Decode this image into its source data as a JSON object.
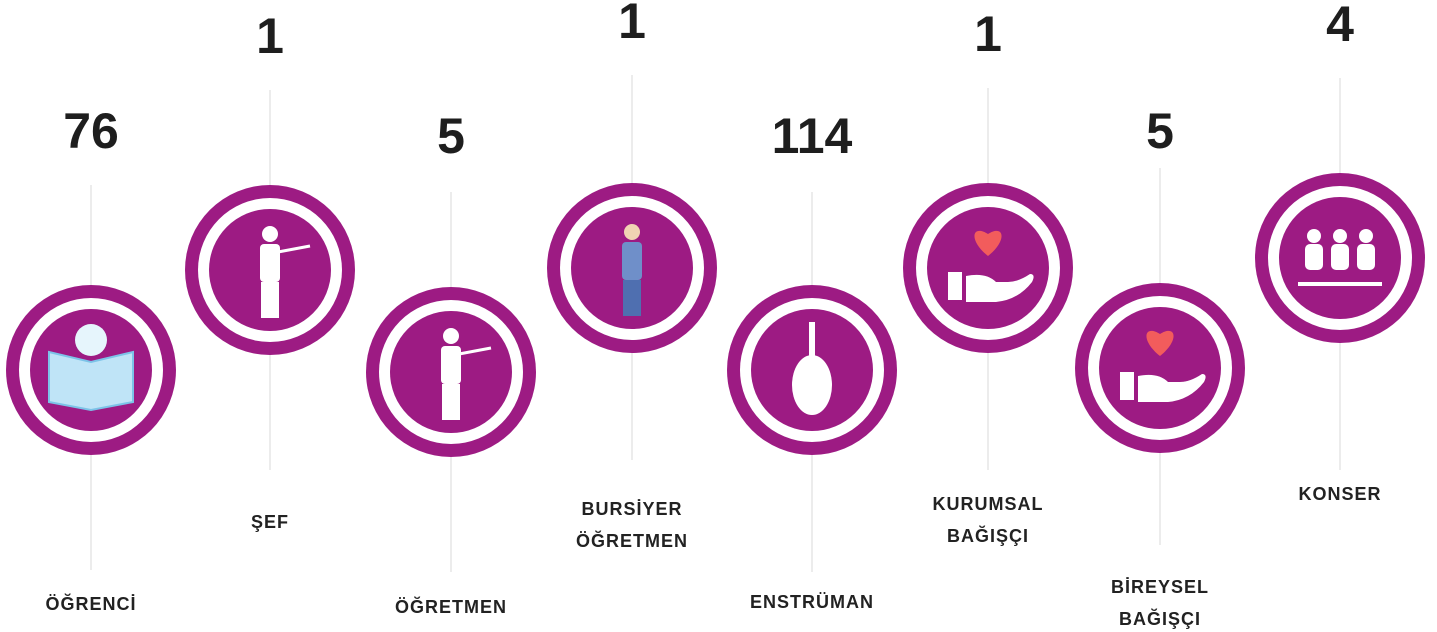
{
  "items": [
    {
      "number": "76",
      "label": [
        "ÖĞRENCİ"
      ]
    },
    {
      "number": "1",
      "label": [
        "ŞEF"
      ]
    },
    {
      "number": "5",
      "label": [
        "ÖĞRETMEN"
      ]
    },
    {
      "number": "1",
      "label": [
        "BURSİYER",
        "ÖĞRETMEN"
      ]
    },
    {
      "number": "114",
      "label": [
        "ENSTRÜMAN"
      ]
    },
    {
      "number": "1",
      "label": [
        "KURUMSAL",
        "BAĞIŞÇI"
      ]
    },
    {
      "number": "5",
      "label": [
        "BİREYSEL",
        "BAĞIŞÇI"
      ]
    },
    {
      "number": "4",
      "label": [
        "KONSER"
      ]
    }
  ]
}
